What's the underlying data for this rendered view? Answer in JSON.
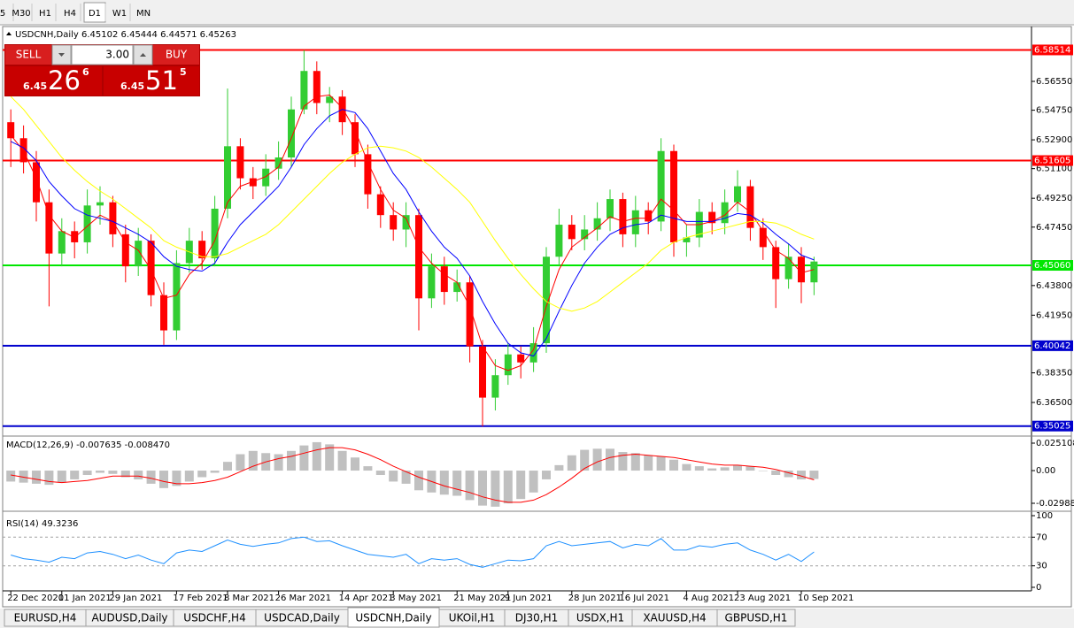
{
  "toolbar": [
    "5",
    "M30",
    "H1",
    "H4",
    "D1",
    "W1",
    "MN"
  ],
  "trade_panel": {
    "sell": "SELL",
    "lots": "3.00",
    "buy": "BUY",
    "bid": [
      "6.45",
      "26",
      "6"
    ],
    "ask": [
      "6.45",
      "51",
      "5"
    ]
  },
  "tabs": [
    "EURUSD,H4",
    "AUDUSD,Daily",
    "USDCHF,H4",
    "USDCAD,Daily",
    "USDCNH,Daily",
    "UKOil,H1",
    "DJ30,H1",
    "USDX,H1",
    "XAUUSD,H4",
    "GBPUSD,H1"
  ],
  "chart_data": [
    {
      "type": "candlestick",
      "title": "USDCNH,Daily 6.45102 6.45444 6.44571 6.45263",
      "categories": [
        "22 Dec 2020",
        null,
        null,
        null,
        "11 Jan 2021",
        null,
        null,
        null,
        "29 Jan 2021",
        null,
        null,
        null,
        null,
        "17 Feb 2021",
        null,
        null,
        null,
        "8 Mar 2021",
        null,
        null,
        null,
        "26 Mar 2021",
        null,
        null,
        null,
        null,
        "14 Apr 2021",
        null,
        null,
        null,
        "3 May 2021",
        null,
        null,
        null,
        null,
        "21 May 2021",
        null,
        null,
        null,
        "9 Jun 2021",
        null,
        null,
        null,
        null,
        "28 Jun 2021",
        null,
        null,
        null,
        "16 Jul 2021",
        null,
        null,
        null,
        null,
        "4 Aug 2021",
        null,
        null,
        null,
        "23 Aug 2021",
        null,
        null,
        null,
        null,
        "10 Sep 2021",
        null
      ],
      "ohlc": {
        "open": [
          6.54,
          6.53,
          6.515,
          6.49,
          6.458,
          6.472,
          6.465,
          6.488,
          6.49,
          6.47,
          6.45,
          6.466,
          6.432,
          6.41,
          6.452,
          6.466,
          6.455,
          6.486,
          6.525,
          6.505,
          6.5,
          6.511,
          6.518,
          6.548,
          6.572,
          6.552,
          6.556,
          6.54,
          6.52,
          6.495,
          6.482,
          6.473,
          6.482,
          6.43,
          6.45,
          6.434,
          6.44,
          6.4,
          6.368,
          6.382,
          6.395,
          6.39,
          6.402,
          6.456,
          6.476,
          6.467,
          6.473,
          6.48,
          6.492,
          6.47,
          6.485,
          6.478,
          6.522,
          6.465,
          6.468,
          6.484,
          6.477,
          6.49,
          6.5,
          6.474,
          6.462,
          6.442,
          6.456,
          6.44
        ],
        "high": [
          6.548,
          6.538,
          6.522,
          6.498,
          6.48,
          6.478,
          6.498,
          6.5,
          6.494,
          6.476,
          6.474,
          6.47,
          6.44,
          6.46,
          6.474,
          6.472,
          6.494,
          6.561,
          6.53,
          6.512,
          6.52,
          6.528,
          6.556,
          6.585,
          6.578,
          6.562,
          6.56,
          6.545,
          6.526,
          6.5,
          6.49,
          6.49,
          6.486,
          6.458,
          6.456,
          6.448,
          6.444,
          6.404,
          6.392,
          6.402,
          6.4,
          6.412,
          6.462,
          6.486,
          6.482,
          6.482,
          6.49,
          6.498,
          6.496,
          6.494,
          6.49,
          6.53,
          6.526,
          6.476,
          6.492,
          6.49,
          6.498,
          6.51,
          6.504,
          6.48,
          6.466,
          6.464,
          6.462,
          6.456
        ],
        "low": [
          6.512,
          6.508,
          6.478,
          6.425,
          6.45,
          6.455,
          6.458,
          6.476,
          6.462,
          6.44,
          6.444,
          6.425,
          6.401,
          6.404,
          6.446,
          6.448,
          6.45,
          6.48,
          6.498,
          6.492,
          6.494,
          6.504,
          6.512,
          6.545,
          6.545,
          6.54,
          6.532,
          6.512,
          6.486,
          6.474,
          6.466,
          6.462,
          6.41,
          6.424,
          6.426,
          6.428,
          6.39,
          6.35,
          6.36,
          6.376,
          6.38,
          6.384,
          6.396,
          6.45,
          6.46,
          6.46,
          6.466,
          6.472,
          6.462,
          6.462,
          6.47,
          6.472,
          6.456,
          6.456,
          6.462,
          6.47,
          6.47,
          6.484,
          6.466,
          6.454,
          6.424,
          6.436,
          6.427,
          6.432
        ],
        "close": [
          6.53,
          6.515,
          6.49,
          6.458,
          6.472,
          6.465,
          6.488,
          6.49,
          6.47,
          6.45,
          6.466,
          6.432,
          6.41,
          6.452,
          6.466,
          6.455,
          6.486,
          6.525,
          6.505,
          6.5,
          6.511,
          6.518,
          6.548,
          6.572,
          6.552,
          6.556,
          6.54,
          6.52,
          6.495,
          6.482,
          6.473,
          6.482,
          6.43,
          6.45,
          6.434,
          6.44,
          6.4,
          6.368,
          6.382,
          6.395,
          6.39,
          6.402,
          6.456,
          6.476,
          6.467,
          6.473,
          6.48,
          6.492,
          6.47,
          6.485,
          6.478,
          6.522,
          6.465,
          6.468,
          6.484,
          6.477,
          6.49,
          6.5,
          6.474,
          6.462,
          6.442,
          6.456,
          6.44,
          6.453
        ]
      },
      "up_color": "#32cd32",
      "down_color": "#ff0000",
      "series": [
        {
          "type": "line",
          "color": "#ff0000",
          "values": [
            6.532,
            6.522,
            6.505,
            6.482,
            6.472,
            6.468,
            6.475,
            6.482,
            6.478,
            6.465,
            6.46,
            6.448,
            6.43,
            6.432,
            6.445,
            6.452,
            6.466,
            6.49,
            6.5,
            6.503,
            6.506,
            6.512,
            6.53,
            6.55,
            6.556,
            6.557,
            6.549,
            6.535,
            6.515,
            6.498,
            6.485,
            6.48,
            6.462,
            6.452,
            6.445,
            6.44,
            6.425,
            6.4,
            6.388,
            6.385,
            6.388,
            6.398,
            6.425,
            6.448,
            6.462,
            6.468,
            6.474,
            6.481,
            6.478,
            6.48,
            6.48,
            6.492,
            6.485,
            6.476,
            6.476,
            6.478,
            6.482,
            6.49,
            6.484,
            6.472,
            6.46,
            6.455,
            6.446,
            6.448
          ]
        },
        {
          "type": "line",
          "color": "#0000ff",
          "values": [
            6.528,
            6.524,
            6.516,
            6.503,
            6.494,
            6.486,
            6.482,
            6.48,
            6.478,
            6.474,
            6.47,
            6.465,
            6.456,
            6.45,
            6.448,
            6.447,
            6.452,
            6.465,
            6.476,
            6.484,
            6.492,
            6.5,
            6.512,
            6.526,
            6.536,
            6.544,
            6.548,
            6.546,
            6.536,
            6.522,
            6.508,
            6.498,
            6.484,
            6.472,
            6.462,
            6.455,
            6.444,
            6.428,
            6.414,
            6.402,
            6.396,
            6.394,
            6.405,
            6.422,
            6.438,
            6.452,
            6.462,
            6.47,
            6.474,
            6.476,
            6.477,
            6.482,
            6.48,
            6.478,
            6.478,
            6.478,
            6.48,
            6.483,
            6.482,
            6.477,
            6.47,
            6.464,
            6.457,
            6.454
          ]
        },
        {
          "type": "line",
          "color": "#ffff00",
          "values": [
            6.556,
            6.548,
            6.538,
            6.528,
            6.518,
            6.51,
            6.503,
            6.497,
            6.492,
            6.486,
            6.48,
            6.474,
            6.466,
            6.462,
            6.459,
            6.456,
            6.456,
            6.458,
            6.462,
            6.466,
            6.47,
            6.476,
            6.484,
            6.492,
            6.5,
            6.508,
            6.515,
            6.52,
            6.524,
            6.525,
            6.524,
            6.522,
            6.518,
            6.512,
            6.505,
            6.498,
            6.49,
            6.478,
            6.466,
            6.455,
            6.445,
            6.436,
            6.428,
            6.424,
            6.422,
            6.424,
            6.428,
            6.434,
            6.44,
            6.446,
            6.452,
            6.46,
            6.465,
            6.468,
            6.47,
            6.472,
            6.474,
            6.476,
            6.478,
            6.478,
            6.477,
            6.474,
            6.47,
            6.467
          ]
        }
      ],
      "levels": [
        {
          "price": 6.58514,
          "color": "#ff0000"
        },
        {
          "price": 6.51605,
          "color": "#ff0000"
        },
        {
          "price": {
            "value": 6.4506,
            "label": "6.45060"
          },
          "color": "#00e600"
        },
        {
          "price": 6.40042,
          "color": "#0000cd"
        },
        {
          "price": 6.35025,
          "color": "#0000cd"
        }
      ],
      "ylim": [
        6.34456,
        6.59975
      ],
      "yticks": [
        {
          "value": 6.5655,
          "label": "6.56550"
        },
        {
          "value": 6.5475,
          "label": "6.54750"
        },
        {
          "value": 6.529,
          "label": "6.52900"
        },
        {
          "value": 6.511,
          "label": "6.51100"
        },
        {
          "value": 6.4925,
          "label": "6.49250"
        },
        {
          "value": 6.4745,
          "label": "6.47450"
        },
        {
          "value": 6.438,
          "label": "6.43800"
        },
        {
          "value": 6.4195,
          "label": "6.41950"
        },
        {
          "value": 6.3835,
          "label": "6.38350"
        },
        {
          "value": 6.365,
          "label": "6.36500"
        }
      ]
    },
    {
      "type": "bar",
      "title": "MACD(12,26,9) -0.007635 -0.008470",
      "series": [
        {
          "type": "bar",
          "color": "#c0c0c0",
          "values": [
            -0.01,
            -0.011,
            -0.012,
            -0.013,
            -0.011,
            -0.008,
            -0.004,
            -0.002,
            -0.003,
            -0.006,
            -0.008,
            -0.012,
            -0.016,
            -0.014,
            -0.01,
            -0.006,
            -0.002,
            0.008,
            0.015,
            0.018,
            0.016,
            0.015,
            0.018,
            0.023,
            0.026,
            0.024,
            0.018,
            0.012,
            0.004,
            -0.004,
            -0.01,
            -0.012,
            -0.018,
            -0.02,
            -0.022,
            -0.023,
            -0.027,
            -0.032,
            -0.033,
            -0.03,
            -0.026,
            -0.02,
            -0.008,
            0.005,
            0.014,
            0.019,
            0.02,
            0.02,
            0.017,
            0.016,
            0.014,
            0.013,
            0.01,
            0.006,
            0.004,
            0.002,
            0.003,
            0.005,
            0.004,
            0.0,
            -0.004,
            -0.006,
            -0.008,
            -0.007635
          ]
        },
        {
          "type": "line",
          "color": "#ff0000",
          "values": [
            -0.004,
            -0.006,
            -0.008,
            -0.01,
            -0.011,
            -0.01,
            -0.009,
            -0.007,
            -0.005,
            -0.005,
            -0.005,
            -0.007,
            -0.01,
            -0.012,
            -0.012,
            -0.011,
            -0.009,
            -0.006,
            -0.001,
            0.004,
            0.008,
            0.011,
            0.013,
            0.016,
            0.019,
            0.021,
            0.021,
            0.019,
            0.015,
            0.01,
            0.004,
            -0.001,
            -0.006,
            -0.01,
            -0.014,
            -0.017,
            -0.02,
            -0.024,
            -0.027,
            -0.029,
            -0.029,
            -0.027,
            -0.022,
            -0.015,
            -0.007,
            0.002,
            0.008,
            0.012,
            0.014,
            0.015,
            0.014,
            0.013,
            0.012,
            0.01,
            0.008,
            0.006,
            0.005,
            0.005,
            0.004,
            0.003,
            0.001,
            -0.002,
            -0.005,
            -0.00847
          ]
        }
      ],
      "ylim": [
        -0.03636,
        0.03078
      ],
      "yticks": [
        0.025108,
        {
          "value": 0,
          "label": "0.00"
        },
        -0.029881
      ]
    },
    {
      "type": "line",
      "title": "RSI(14) 49.3236",
      "series": [
        {
          "type": "line",
          "color": "#1e90ff",
          "values": [
            45,
            40,
            38,
            35,
            42,
            40,
            48,
            50,
            46,
            40,
            45,
            38,
            33,
            48,
            52,
            50,
            58,
            66,
            60,
            57,
            60,
            62,
            68,
            70,
            64,
            65,
            58,
            52,
            46,
            44,
            42,
            46,
            33,
            40,
            38,
            40,
            32,
            28,
            33,
            38,
            37,
            40,
            58,
            64,
            58,
            60,
            62,
            64,
            55,
            60,
            58,
            68,
            52,
            52,
            58,
            56,
            60,
            62,
            52,
            46,
            38,
            46,
            36,
            49.3236
          ]
        }
      ],
      "ylim": [
        0,
        100
      ],
      "yticks": [
        100,
        70,
        30,
        0
      ],
      "grid": "dashed"
    }
  ]
}
